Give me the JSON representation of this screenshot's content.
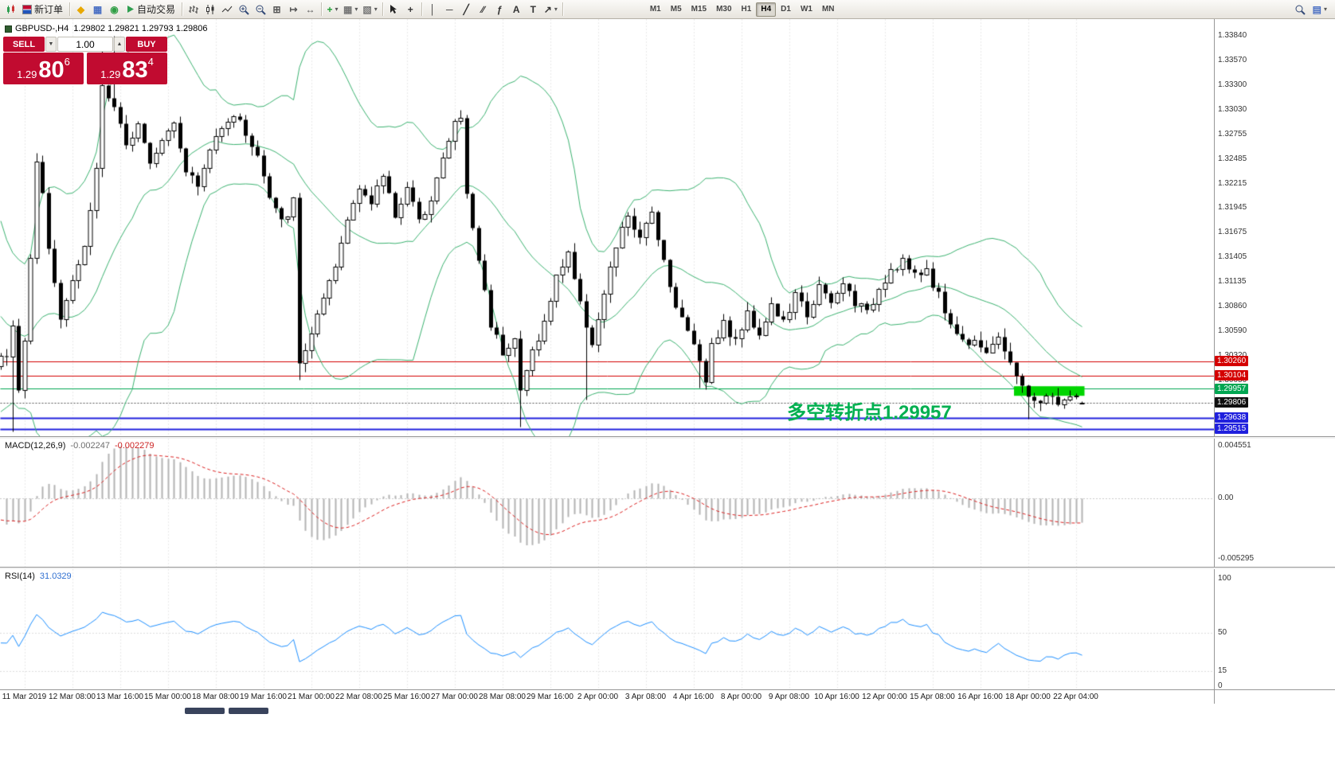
{
  "toolbar": {
    "items": [
      {
        "name": "app-icon",
        "icon_name": "app-chart-icon",
        "svg": "candles-small",
        "interactable": false
      },
      {
        "name": "new-order-button",
        "icon_name": "new-order-icon",
        "svg": "newdoc",
        "label": "新订单"
      },
      {
        "sep": true
      },
      {
        "name": "metaeditor-button",
        "icon_name": "metaeditor-icon",
        "glyph": "◆",
        "color": "#e8a800"
      },
      {
        "name": "market-watch-button",
        "icon_name": "market-watch-icon",
        "glyph": "▦",
        "color": "#4a6fc3"
      },
      {
        "name": "navigator-button",
        "icon_name": "navigator-icon",
        "glyph": "◉",
        "color": "#2f9e44"
      },
      {
        "name": "autotrading-button",
        "icon_name": "autotrading-play-icon",
        "svg": "play",
        "label": "自动交易"
      },
      {
        "sep": true
      },
      {
        "name": "bar-chart-button",
        "icon_name": "bar-chart-icon",
        "svg": "bars"
      },
      {
        "name": "candlestick-chart-button",
        "icon_name": "candlestick-chart-icon",
        "svg": "candles"
      },
      {
        "name": "line-chart-button",
        "icon_name": "line-chart-icon",
        "svg": "linechart"
      },
      {
        "name": "zoom-in-button",
        "icon_name": "zoom-in-icon",
        "svg": "magnifier-plus"
      },
      {
        "name": "zoom-out-button",
        "icon_name": "zoom-out-icon",
        "svg": "magnifier-minus"
      },
      {
        "name": "tile-windows-button",
        "icon_name": "tile-windows-icon",
        "glyph": "⊞",
        "color": "#555555"
      },
      {
        "name": "auto-scroll-button",
        "icon_name": "auto-scroll-icon",
        "glyph": "↦",
        "color": "#555555"
      },
      {
        "name": "chart-shift-button",
        "icon_name": "chart-shift-icon",
        "glyph": "↔",
        "color": "#555555"
      },
      {
        "sep": true
      },
      {
        "name": "indicators-button",
        "icon_name": "add-indicator-icon",
        "glyph": "+",
        "color": "#1d9e33",
        "dropdown": true
      },
      {
        "name": "periods-button",
        "icon_name": "periods-icon",
        "glyph": "▦",
        "color": "#777777",
        "dropdown": true
      },
      {
        "name": "templates-button",
        "icon_name": "templates-icon",
        "glyph": "▧",
        "color": "#777777",
        "dropdown": true
      },
      {
        "sep": true
      },
      {
        "name": "cursor-button",
        "icon_name": "cursor-icon",
        "svg": "cursor"
      },
      {
        "name": "crosshair-button",
        "icon_name": "crosshair-icon",
        "glyph": "+",
        "color": "#333333"
      },
      {
        "sep": true
      },
      {
        "name": "vertical-line-button",
        "icon_name": "vertical-line-icon",
        "glyph": "│",
        "color": "#333333"
      },
      {
        "name": "horizontal-line-button",
        "icon_name": "horizontal-line-icon",
        "glyph": "─",
        "color": "#333333"
      },
      {
        "name": "trendline-button",
        "icon_name": "trendline-icon",
        "glyph": "╱",
        "color": "#333333"
      },
      {
        "name": "channel-button",
        "icon_name": "channel-icon",
        "glyph": "∕∕",
        "color": "#333333"
      },
      {
        "name": "fibonacci-button",
        "icon_name": "fibonacci-icon",
        "glyph": "ƒ",
        "color": "#333333"
      },
      {
        "name": "text-button",
        "icon_name": "text-icon",
        "glyph": "A",
        "color": "#333333"
      },
      {
        "name": "text-label-button",
        "icon_name": "text-label-icon",
        "glyph": "T",
        "color": "#333333"
      },
      {
        "name": "arrows-button",
        "icon_name": "arrows-icon",
        "glyph": "↗",
        "color": "#333333",
        "dropdown": true
      },
      {
        "sep": true
      }
    ],
    "timeframes": [
      "M1",
      "M5",
      "M15",
      "M30",
      "H1",
      "H4",
      "D1",
      "W1",
      "MN"
    ],
    "active_timeframe": "H4",
    "right_items": [
      {
        "name": "search-button",
        "icon_name": "search-icon",
        "svg": "magnifier"
      },
      {
        "name": "chart-window-button",
        "icon_name": "chart-window-icon",
        "glyph": "▤",
        "color": "#4a6fc3",
        "dropdown": true
      }
    ]
  },
  "chart_header": {
    "symbol": "GBPUSD-,H4",
    "ohlc": "1.29802 1.29821 1.29793 1.29806"
  },
  "quote_panel": {
    "sell_label": "SELL",
    "buy_label": "BUY",
    "volume": "1.00",
    "sell_price": {
      "prefix": "1.29",
      "big": "80",
      "sup": "6"
    },
    "buy_price": {
      "prefix": "1.29",
      "big": "83",
      "sup": "4"
    }
  },
  "annotation": {
    "text": "多空转折点1.29957",
    "color": "#00b050"
  },
  "price_axis": {
    "labels": [
      "1.33840",
      "1.33570",
      "1.33300",
      "1.33030",
      "1.32755",
      "1.32485",
      "1.32215",
      "1.31945",
      "1.31675",
      "1.31405",
      "1.31135",
      "1.30860",
      "1.30590",
      "1.30320",
      "1.30050"
    ]
  },
  "levels": [
    {
      "price": 1.3026,
      "label": "1.30260",
      "color": "#d40000",
      "width": 1
    },
    {
      "price": 1.30104,
      "label": "1.30104",
      "color": "#d40000",
      "width": 1
    },
    {
      "price": 1.29957,
      "label": "1.29957",
      "color": "#00a651",
      "width": 1
    },
    {
      "price": 1.29638,
      "label": "1.29638",
      "color": "#2020dd",
      "width": 2
    },
    {
      "price": 1.29515,
      "label": "1.29515",
      "color": "#2020dd",
      "width": 2
    }
  ],
  "current_price": {
    "value": 1.29806,
    "label": "1.29806",
    "badge_color": "#101010"
  },
  "highlight_zone": {
    "from_candle": 169,
    "to_candle": 180,
    "price_top": 1.2999,
    "price_bottom": 1.29885,
    "color": "#00d500"
  },
  "indicators": {
    "macd": {
      "label": "MACD(12,26,9)",
      "value1": "-0.002247",
      "value2": "-0.002279",
      "axis_top": "0.004551",
      "axis_zero": "0.00",
      "axis_bottom": "-0.005295"
    },
    "rsi": {
      "label": "RSI(14)",
      "value": "31.0329",
      "axis": [
        "100",
        "50",
        "15",
        "0"
      ],
      "levels": [
        50,
        15
      ]
    }
  },
  "time_axis": {
    "labels": [
      "11 Mar 2019",
      "12 Mar 08:00",
      "13 Mar 16:00",
      "15 Mar 00:00",
      "18 Mar 08:00",
      "19 Mar 16:00",
      "21 Mar 00:00",
      "22 Mar 08:00",
      "25 Mar 16:00",
      "27 Mar 00:00",
      "28 Mar 08:00",
      "29 Mar 16:00",
      "2 Apr 00:00",
      "3 Apr 08:00",
      "4 Apr 16:00",
      "8 Apr 00:00",
      "9 Apr 08:00",
      "10 Apr 16:00",
      "12 Apr 00:00",
      "15 Apr 08:00",
      "16 Apr 16:00",
      "18 Apr 00:00",
      "22 Apr 04:00"
    ]
  },
  "chart_data": {
    "type": "candlestick",
    "symbol": "GBPUSD",
    "period": "H4",
    "candle_count": 181,
    "visible_price_top": 1.34024,
    "visible_price_bottom": 1.29436,
    "last_candle": {
      "open": 1.29802,
      "high": 1.29821,
      "low": 1.29793,
      "close": 1.29806
    },
    "pre_anchors": [
      [
        -30,
        1.315
      ],
      [
        -25,
        1.306
      ],
      [
        -20,
        1.319
      ],
      [
        -15,
        1.304
      ],
      [
        -10,
        1.314
      ],
      [
        -5,
        1.2995
      ],
      [
        -2,
        1.3025
      ]
    ],
    "anchors": [
      [
        0,
        1.3035
      ],
      [
        1,
        1.3062
      ],
      [
        2,
        1.2998
      ],
      [
        3,
        1.3045
      ],
      [
        5,
        1.3245
      ],
      [
        6,
        1.3212
      ],
      [
        7,
        1.3152
      ],
      [
        9,
        1.3078
      ],
      [
        11,
        1.3118
      ],
      [
        13,
        1.3152
      ],
      [
        15,
        1.3238
      ],
      [
        16,
        1.333
      ],
      [
        18,
        1.3302
      ],
      [
        20,
        1.3262
      ],
      [
        22,
        1.3292
      ],
      [
        24,
        1.3248
      ],
      [
        26,
        1.3272
      ],
      [
        28,
        1.3292
      ],
      [
        30,
        1.3238
      ],
      [
        32,
        1.3218
      ],
      [
        34,
        1.3258
      ],
      [
        36,
        1.3288
      ],
      [
        38,
        1.3298
      ],
      [
        40,
        1.3278
      ],
      [
        42,
        1.3252
      ],
      [
        44,
        1.3205
      ],
      [
        46,
        1.3178
      ],
      [
        48,
        1.3202
      ],
      [
        49,
        1.3022
      ],
      [
        51,
        1.3058
      ],
      [
        53,
        1.3092
      ],
      [
        55,
        1.3128
      ],
      [
        57,
        1.3182
      ],
      [
        59,
        1.3222
      ],
      [
        61,
        1.3198
      ],
      [
        63,
        1.3232
      ],
      [
        65,
        1.3188
      ],
      [
        67,
        1.3218
      ],
      [
        69,
        1.3178
      ],
      [
        71,
        1.3208
      ],
      [
        73,
        1.3248
      ],
      [
        75,
        1.3288
      ],
      [
        76,
        1.3295
      ],
      [
        77,
        1.3208
      ],
      [
        79,
        1.3138
      ],
      [
        81,
        1.3068
      ],
      [
        83,
        1.3038
      ],
      [
        85,
        1.3052
      ],
      [
        86,
        1.2992
      ],
      [
        88,
        1.3038
      ],
      [
        90,
        1.3068
      ],
      [
        92,
        1.3118
      ],
      [
        94,
        1.3148
      ],
      [
        96,
        1.3088
      ],
      [
        98,
        1.3048
      ],
      [
        100,
        1.3098
      ],
      [
        102,
        1.3152
      ],
      [
        104,
        1.3188
      ],
      [
        106,
        1.3158
      ],
      [
        108,
        1.3192
      ],
      [
        110,
        1.3138
      ],
      [
        112,
        1.3088
      ],
      [
        114,
        1.3058
      ],
      [
        116,
        1.3032
      ],
      [
        117,
        1.3002
      ],
      [
        118,
        1.3048
      ],
      [
        120,
        1.3068
      ],
      [
        122,
        1.3048
      ],
      [
        124,
        1.3078
      ],
      [
        126,
        1.3058
      ],
      [
        128,
        1.3088
      ],
      [
        130,
        1.3068
      ],
      [
        132,
        1.3098
      ],
      [
        134,
        1.3078
      ],
      [
        136,
        1.3108
      ],
      [
        138,
        1.3088
      ],
      [
        140,
        1.3112
      ],
      [
        142,
        1.3092
      ],
      [
        144,
        1.3078
      ],
      [
        146,
        1.3108
      ],
      [
        148,
        1.3128
      ],
      [
        150,
        1.3138
      ],
      [
        152,
        1.3118
      ],
      [
        154,
        1.3128
      ],
      [
        156,
        1.3098
      ],
      [
        158,
        1.3068
      ],
      [
        160,
        1.3048
      ],
      [
        162,
        1.3052
      ],
      [
        164,
        1.3038
      ],
      [
        166,
        1.3048
      ],
      [
        168,
        1.3028
      ],
      [
        170,
        1.2996
      ],
      [
        172,
        1.2979
      ],
      [
        174,
        1.2989
      ],
      [
        176,
        1.2981
      ],
      [
        178,
        1.2987
      ],
      [
        180,
        1.29806
      ]
    ],
    "wicks": [
      {
        "i": 1,
        "l": 1.2949
      },
      {
        "i": 16,
        "h": 1.3381
      },
      {
        "i": 18,
        "h": 1.3384
      },
      {
        "i": 49,
        "l": 1.3006
      },
      {
        "i": 86,
        "l": 1.2954
      },
      {
        "i": 97,
        "l": 1.2984
      },
      {
        "i": 116,
        "l": 1.2997
      },
      {
        "i": 171,
        "l": 1.2963
      }
    ],
    "bollinger": {
      "period": 20,
      "deviation": 2,
      "color": "#3CB371"
    },
    "macd": {
      "fast": 12,
      "slow": 26,
      "signal": 9,
      "histogram_color": "#b4b4b4",
      "signal_color": "#dd2222"
    },
    "rsi": {
      "period": 14,
      "color": "#1E90FF"
    }
  },
  "colors": {
    "bull_candle": "#ffffff",
    "bear_candle": "#000000",
    "candle_outline": "#000000",
    "grid": "#d4d4d4",
    "panel_red": "#c10b30",
    "current_price_line": "#555555"
  }
}
